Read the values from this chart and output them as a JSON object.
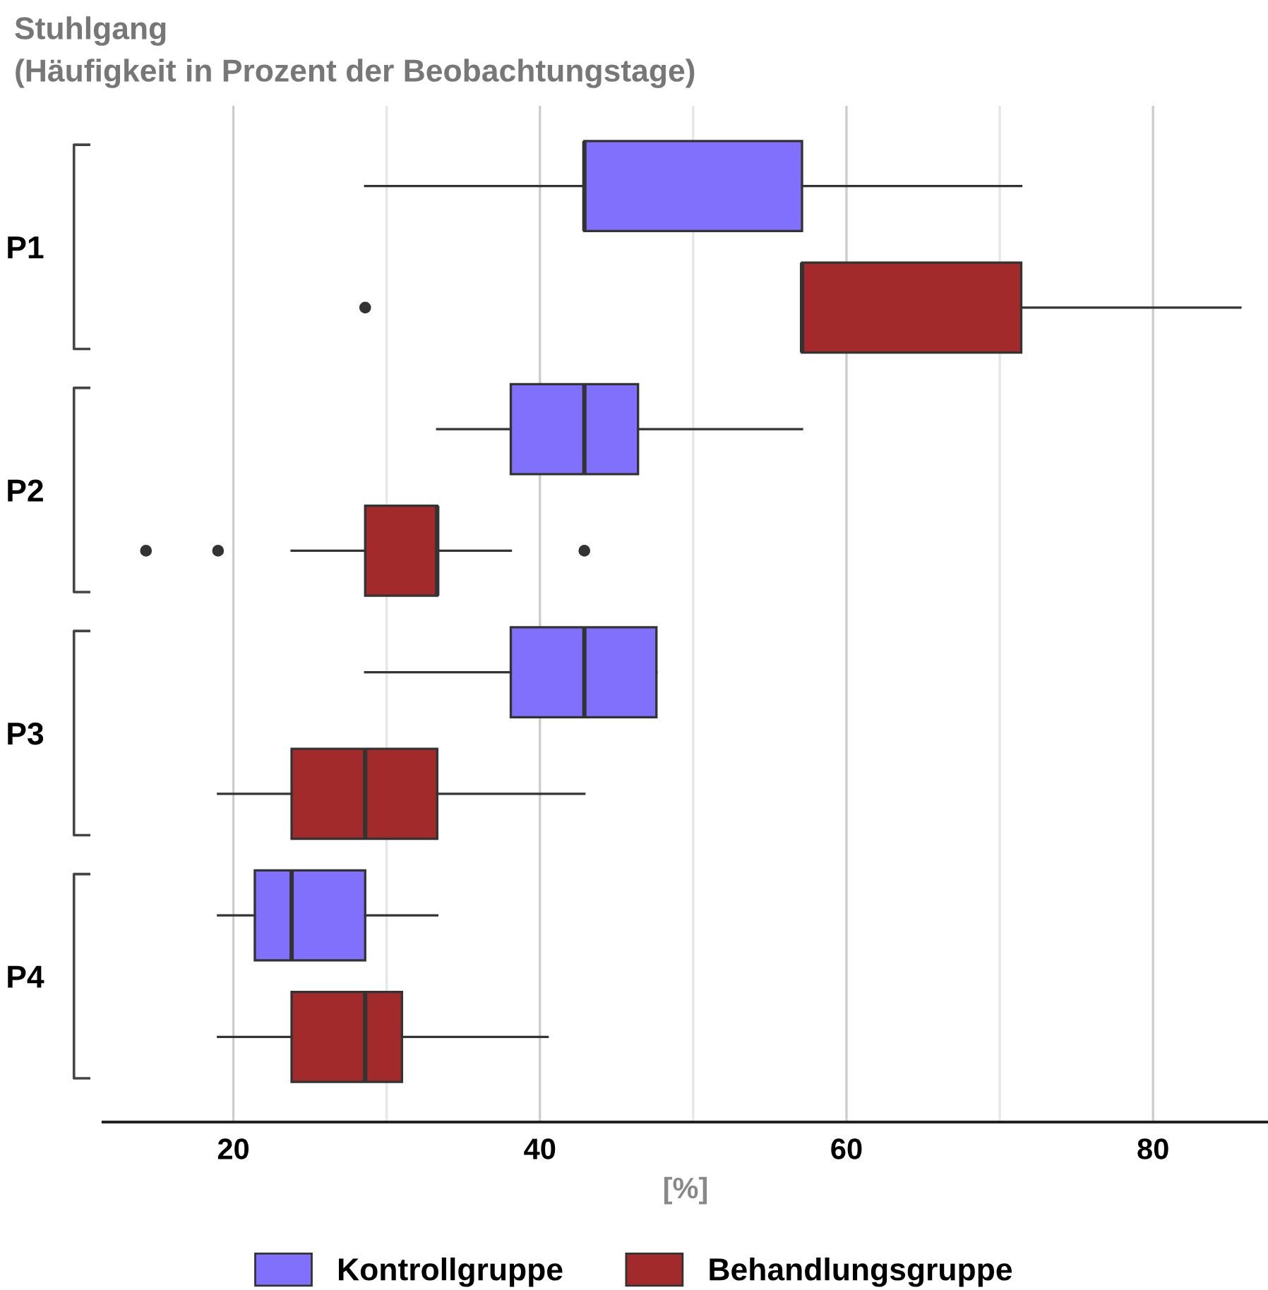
{
  "chart_data": {
    "type": "box",
    "orientation": "horizontal",
    "title": "Stuhlgang",
    "subtitle": "(Häufigkeit in Prozent der Beobachtungstage)",
    "xlabel": "[%]",
    "categories": [
      "P1",
      "P2",
      "P3",
      "P4"
    ],
    "series": [
      {
        "name": "Kontrollgruppe",
        "color": "#8070fc",
        "boxes": [
          {
            "low": 28.6,
            "q1": 42.9,
            "median": 42.9,
            "q3": 57.1,
            "high": 71.4
          },
          {
            "low": 33.3,
            "q1": 38.1,
            "median": 42.9,
            "q3": 46.4,
            "high": 57.1
          },
          {
            "low": 28.6,
            "q1": 38.1,
            "median": 42.9,
            "q3": 47.6,
            "high": 47.6
          },
          {
            "low": 19.0,
            "q1": 21.4,
            "median": 23.8,
            "q3": 28.6,
            "high": 33.3
          }
        ]
      },
      {
        "name": "Behandlungsgruppe",
        "color": "#a22a2a",
        "boxes": [
          {
            "low": 57.1,
            "q1": 57.1,
            "median": 57.1,
            "q3": 71.4,
            "high": 85.7,
            "outliers": [
              28.6
            ]
          },
          {
            "low": 23.8,
            "q1": 28.6,
            "median": 33.3,
            "q3": 33.3,
            "high": 38.1,
            "outliers": [
              14.3,
              19.0,
              42.9
            ]
          },
          {
            "low": 19.0,
            "q1": 23.8,
            "median": 28.6,
            "q3": 33.3,
            "high": 42.9
          },
          {
            "low": 19.0,
            "q1": 23.8,
            "median": 28.6,
            "q3": 31.0,
            "high": 40.5
          }
        ]
      }
    ],
    "xlim": [
      11.5,
      87.5
    ],
    "xticks": [
      20,
      {
        "value": 30,
        "label": null
      },
      40,
      {
        "value": 50,
        "label": null
      },
      60,
      {
        "value": 70,
        "label": null
      },
      80
    ],
    "grid": "x",
    "legend": "bottom"
  }
}
